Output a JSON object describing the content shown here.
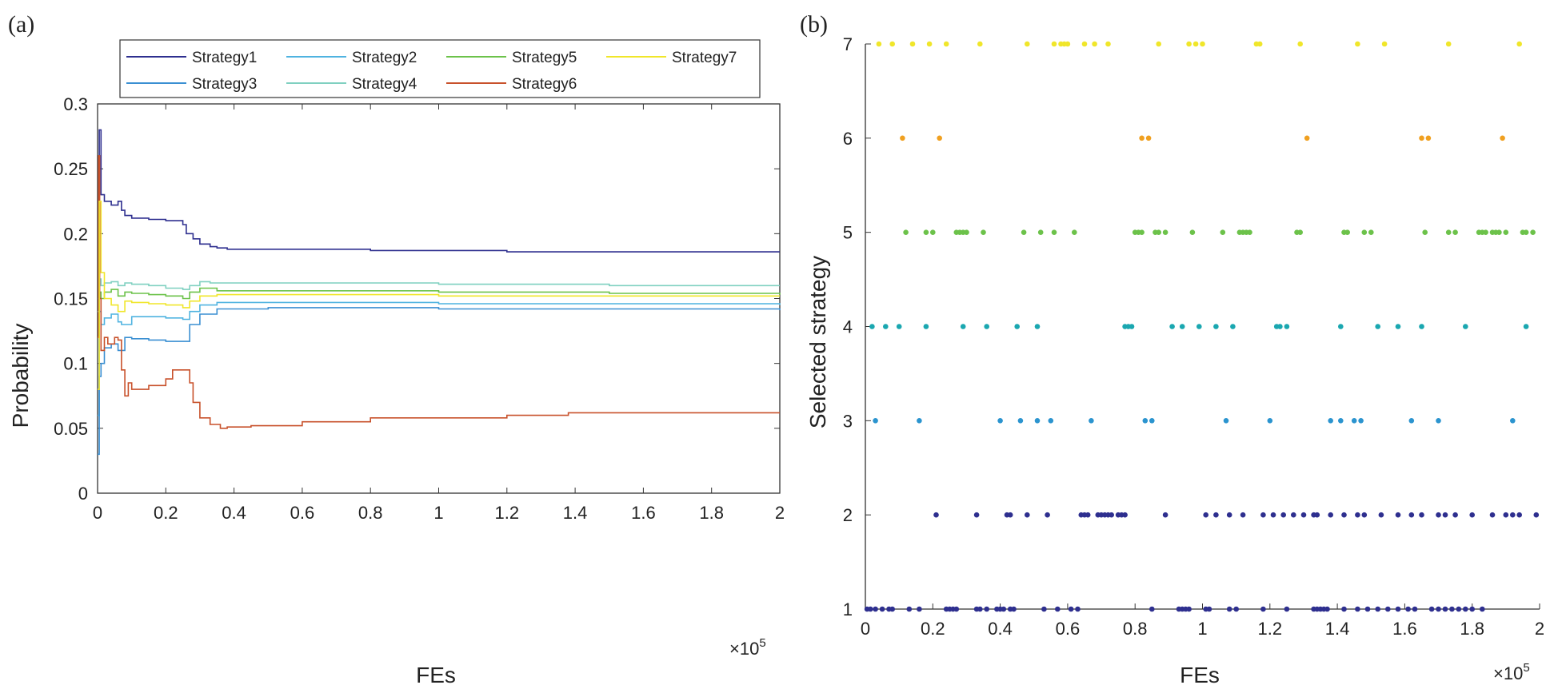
{
  "chart_data": [
    {
      "panel_label": "(a)",
      "type": "line",
      "xlabel": "FEs",
      "ylabel": "Probability",
      "x_multiplier": "×10",
      "x_multiplier_exp": "5",
      "xlim": [
        0,
        2
      ],
      "ylim": [
        0,
        0.3
      ],
      "xticks": [
        "0",
        "0.2",
        "0.4",
        "0.6",
        "0.8",
        "1",
        "1.2",
        "1.4",
        "1.6",
        "1.8",
        "2"
      ],
      "yticks": [
        "0",
        "0.05",
        "0.1",
        "0.15",
        "0.2",
        "0.25",
        "0.3"
      ],
      "legend_position": "top",
      "series": [
        {
          "name": "Strategy1",
          "color": "#2e2f8f",
          "x": [
            0,
            0.005,
            0.01,
            0.02,
            0.04,
            0.06,
            0.07,
            0.08,
            0.1,
            0.15,
            0.2,
            0.25,
            0.26,
            0.28,
            0.3,
            0.33,
            0.35,
            0.38,
            0.5,
            0.8,
            1.2,
            1.6,
            2.0
          ],
          "values": [
            0.15,
            0.28,
            0.23,
            0.225,
            0.222,
            0.225,
            0.218,
            0.214,
            0.212,
            0.211,
            0.21,
            0.207,
            0.2,
            0.196,
            0.192,
            0.19,
            0.189,
            0.188,
            0.188,
            0.187,
            0.186,
            0.186,
            0.186
          ]
        },
        {
          "name": "Strategy2",
          "color": "#4fb3e0",
          "x": [
            0,
            0.005,
            0.01,
            0.02,
            0.04,
            0.06,
            0.07,
            0.1,
            0.15,
            0.2,
            0.25,
            0.27,
            0.3,
            0.35,
            0.5,
            1.0,
            1.5,
            2.0
          ],
          "values": [
            0.06,
            0.14,
            0.13,
            0.135,
            0.138,
            0.132,
            0.13,
            0.136,
            0.136,
            0.135,
            0.134,
            0.14,
            0.145,
            0.147,
            0.147,
            0.146,
            0.146,
            0.145
          ]
        },
        {
          "name": "Strategy3",
          "color": "#3a8fd2",
          "x": [
            0,
            0.005,
            0.01,
            0.02,
            0.04,
            0.06,
            0.08,
            0.1,
            0.15,
            0.2,
            0.25,
            0.27,
            0.3,
            0.35,
            0.5,
            1.0,
            1.5,
            2.0
          ],
          "values": [
            0.03,
            0.09,
            0.1,
            0.112,
            0.115,
            0.11,
            0.12,
            0.119,
            0.118,
            0.117,
            0.117,
            0.13,
            0.138,
            0.142,
            0.143,
            0.142,
            0.142,
            0.141
          ]
        },
        {
          "name": "Strategy4",
          "color": "#7fd0c0",
          "x": [
            0,
            0.005,
            0.01,
            0.02,
            0.04,
            0.06,
            0.08,
            0.1,
            0.15,
            0.2,
            0.25,
            0.27,
            0.3,
            0.33,
            0.36,
            0.5,
            1.0,
            1.5,
            2.0
          ],
          "values": [
            0.14,
            0.165,
            0.16,
            0.162,
            0.163,
            0.16,
            0.162,
            0.161,
            0.16,
            0.158,
            0.157,
            0.16,
            0.163,
            0.162,
            0.162,
            0.162,
            0.161,
            0.16,
            0.16
          ]
        },
        {
          "name": "Strategy5",
          "color": "#6cc24a",
          "x": [
            0,
            0.005,
            0.01,
            0.02,
            0.04,
            0.06,
            0.08,
            0.1,
            0.15,
            0.2,
            0.25,
            0.27,
            0.3,
            0.35,
            0.5,
            1.0,
            1.5,
            2.0
          ],
          "values": [
            0.12,
            0.155,
            0.15,
            0.155,
            0.157,
            0.152,
            0.155,
            0.154,
            0.153,
            0.152,
            0.15,
            0.155,
            0.158,
            0.156,
            0.156,
            0.155,
            0.154,
            0.153
          ]
        },
        {
          "name": "Strategy6",
          "color": "#c8512b",
          "x": [
            0,
            0.003,
            0.006,
            0.01,
            0.02,
            0.03,
            0.05,
            0.06,
            0.07,
            0.08,
            0.09,
            0.1,
            0.15,
            0.2,
            0.22,
            0.25,
            0.27,
            0.28,
            0.3,
            0.33,
            0.36,
            0.38,
            0.45,
            0.6,
            0.8,
            1.0,
            1.2,
            1.38,
            1.6,
            1.8,
            2.0
          ],
          "values": [
            0.12,
            0.26,
            0.15,
            0.11,
            0.12,
            0.115,
            0.12,
            0.118,
            0.095,
            0.075,
            0.085,
            0.08,
            0.083,
            0.088,
            0.095,
            0.095,
            0.085,
            0.07,
            0.058,
            0.053,
            0.05,
            0.051,
            0.052,
            0.055,
            0.058,
            0.058,
            0.06,
            0.062,
            0.062,
            0.062,
            0.062
          ]
        },
        {
          "name": "Strategy7",
          "color": "#f0e62a",
          "x": [
            0,
            0.005,
            0.01,
            0.02,
            0.04,
            0.06,
            0.08,
            0.1,
            0.15,
            0.2,
            0.25,
            0.27,
            0.3,
            0.35,
            0.5,
            1.0,
            1.5,
            2.0
          ],
          "values": [
            0.08,
            0.225,
            0.17,
            0.15,
            0.145,
            0.14,
            0.148,
            0.147,
            0.146,
            0.145,
            0.143,
            0.148,
            0.152,
            0.153,
            0.153,
            0.152,
            0.152,
            0.152
          ]
        }
      ]
    },
    {
      "panel_label": "(b)",
      "type": "scatter",
      "xlabel": "FEs",
      "ylabel": "Selected strategy",
      "x_multiplier": "×10",
      "x_multiplier_exp": "5",
      "xlim": [
        0,
        2
      ],
      "ylim": [
        1,
        7
      ],
      "xticks": [
        "0",
        "0.2",
        "0.4",
        "0.6",
        "0.8",
        "1",
        "1.2",
        "1.4",
        "1.6",
        "1.8",
        "2"
      ],
      "yticks": [
        "1",
        "2",
        "3",
        "4",
        "5",
        "6",
        "7"
      ],
      "series": [
        {
          "name": "Strategy1",
          "color": "#2e2f8f",
          "y": 1,
          "x": [
            0.005,
            0.015,
            0.03,
            0.05,
            0.07,
            0.08,
            0.13,
            0.16,
            0.24,
            0.25,
            0.26,
            0.27,
            0.33,
            0.34,
            0.36,
            0.39,
            0.4,
            0.41,
            0.43,
            0.44,
            0.53,
            0.57,
            0.61,
            0.63,
            0.85,
            0.93,
            0.94,
            0.95,
            0.96,
            1.01,
            1.02,
            1.08,
            1.1,
            1.18,
            1.25,
            1.33,
            1.34,
            1.35,
            1.36,
            1.37,
            1.42,
            1.46,
            1.49,
            1.52,
            1.55,
            1.58,
            1.61,
            1.63,
            1.68,
            1.7,
            1.72,
            1.74,
            1.76,
            1.78,
            1.8,
            1.83
          ]
        },
        {
          "name": "Strategy2",
          "color": "#2e2f8f",
          "y": 2,
          "x": [
            0.21,
            0.33,
            0.42,
            0.43,
            0.48,
            0.54,
            0.64,
            0.65,
            0.66,
            0.69,
            0.7,
            0.71,
            0.72,
            0.73,
            0.75,
            0.76,
            0.77,
            0.89,
            1.01,
            1.04,
            1.08,
            1.12,
            1.18,
            1.21,
            1.24,
            1.27,
            1.3,
            1.33,
            1.34,
            1.38,
            1.42,
            1.46,
            1.48,
            1.53,
            1.58,
            1.62,
            1.65,
            1.7,
            1.72,
            1.75,
            1.8,
            1.86,
            1.9,
            1.92,
            1.94,
            1.99
          ]
        },
        {
          "name": "Strategy3",
          "color": "#2b94cf",
          "y": 3,
          "x": [
            0.03,
            0.16,
            0.4,
            0.46,
            0.51,
            0.55,
            0.67,
            0.83,
            0.85,
            1.07,
            1.2,
            1.38,
            1.41,
            1.45,
            1.47,
            1.62,
            1.7,
            1.92
          ]
        },
        {
          "name": "Strategy4",
          "color": "#1aa7b0",
          "y": 4,
          "x": [
            0.02,
            0.06,
            0.1,
            0.18,
            0.29,
            0.36,
            0.45,
            0.51,
            0.77,
            0.78,
            0.79,
            0.91,
            0.94,
            0.99,
            1.04,
            1.09,
            1.22,
            1.23,
            1.25,
            1.41,
            1.52,
            1.58,
            1.65,
            1.78,
            1.96
          ]
        },
        {
          "name": "Strategy5",
          "color": "#6cc24a",
          "y": 5,
          "x": [
            0.12,
            0.18,
            0.2,
            0.27,
            0.28,
            0.29,
            0.3,
            0.35,
            0.47,
            0.52,
            0.56,
            0.62,
            0.8,
            0.81,
            0.82,
            0.86,
            0.87,
            0.89,
            0.97,
            1.06,
            1.11,
            1.12,
            1.13,
            1.14,
            1.28,
            1.29,
            1.42,
            1.43,
            1.48,
            1.5,
            1.66,
            1.73,
            1.75,
            1.82,
            1.83,
            1.84,
            1.86,
            1.87,
            1.88,
            1.9,
            1.95,
            1.96,
            1.98
          ]
        },
        {
          "name": "Strategy6",
          "color": "#f0a020",
          "y": 6,
          "x": [
            0.11,
            0.22,
            0.82,
            0.84,
            1.31,
            1.65,
            1.67,
            1.89
          ]
        },
        {
          "name": "Strategy7",
          "color": "#f0e62a",
          "y": 7,
          "x": [
            0.04,
            0.08,
            0.14,
            0.19,
            0.24,
            0.34,
            0.48,
            0.56,
            0.58,
            0.59,
            0.6,
            0.65,
            0.68,
            0.72,
            0.87,
            0.96,
            0.98,
            1.0,
            1.16,
            1.17,
            1.29,
            1.46,
            1.54,
            1.73,
            1.94
          ]
        }
      ]
    }
  ]
}
